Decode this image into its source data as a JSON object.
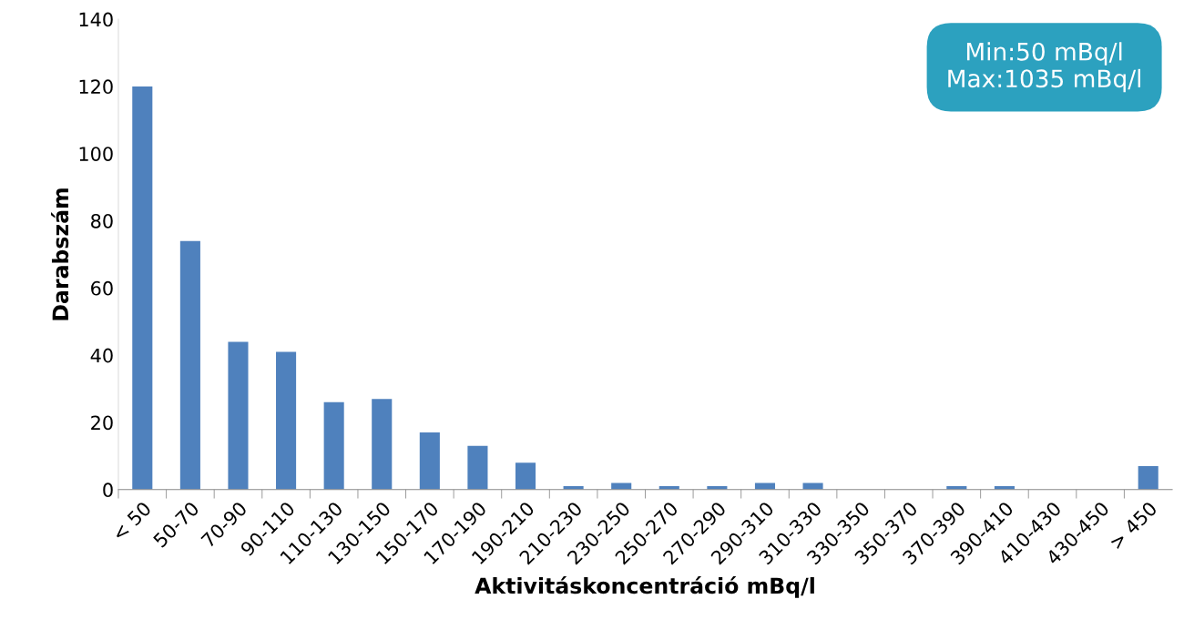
{
  "chart_data": {
    "type": "bar",
    "xlabel": "Aktivitáskoncentráció mBq/l",
    "ylabel": "Darabszám",
    "categories": [
      "< 50",
      "50-70",
      "70-90",
      "90-110",
      "110-130",
      "130-150",
      "150-170",
      "170-190",
      "190-210",
      "210-230",
      "230-250",
      "250-270",
      "270-290",
      "290-310",
      "310-330",
      "330-350",
      "350-370",
      "370-390",
      "390-410",
      "410-430",
      "430-450",
      "> 450"
    ],
    "values": [
      120,
      74,
      44,
      41,
      26,
      27,
      17,
      13,
      8,
      1,
      2,
      1,
      1,
      2,
      2,
      0,
      0,
      1,
      1,
      0,
      0,
      7
    ],
    "color": "#4f81bd",
    "ylim": [
      0,
      140
    ],
    "yticks": [
      0,
      20,
      40,
      60,
      80,
      100,
      120,
      140
    ],
    "grid": false,
    "legend": false,
    "annotations": [
      "Min:50 mBq/l\nMax:1035 mBq/l"
    ]
  }
}
